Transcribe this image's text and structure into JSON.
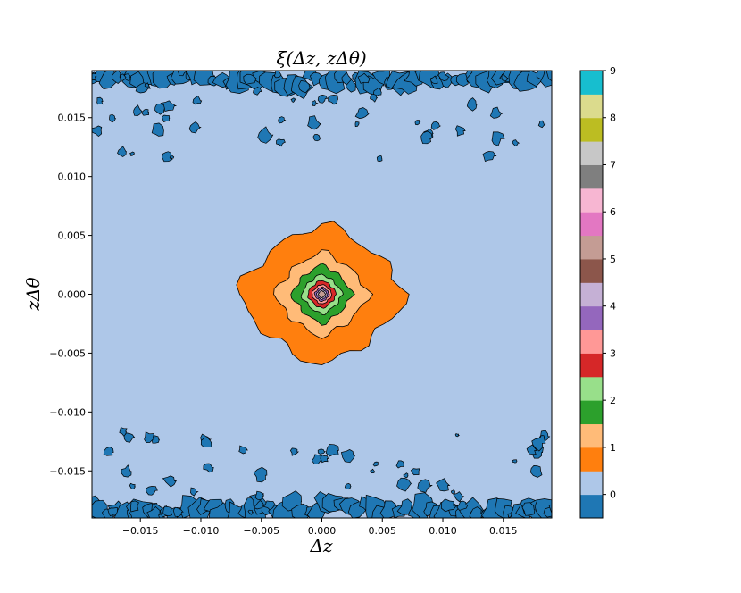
{
  "chart_data": {
    "type": "contour",
    "title": "ξ(Δz, zΔθ)",
    "xlabel": "Δz",
    "ylabel": "zΔθ",
    "xlim": [
      -0.019,
      0.019
    ],
    "ylim": [
      -0.019,
      0.019
    ],
    "x_ticks": [
      {
        "value": -0.015,
        "label": "−0.015"
      },
      {
        "value": -0.01,
        "label": "−0.010"
      },
      {
        "value": -0.005,
        "label": "−0.005"
      },
      {
        "value": 0.0,
        "label": "0.000"
      },
      {
        "value": 0.005,
        "label": "0.005"
      },
      {
        "value": 0.01,
        "label": "0.010"
      },
      {
        "value": 0.015,
        "label": "0.015"
      }
    ],
    "y_ticks": [
      {
        "value": 0.015,
        "label": "0.015"
      },
      {
        "value": 0.01,
        "label": "0.010"
      },
      {
        "value": 0.005,
        "label": "0.005"
      },
      {
        "value": 0.0,
        "label": "0.000"
      },
      {
        "value": -0.005,
        "label": "−0.005"
      },
      {
        "value": -0.01,
        "label": "−0.010"
      },
      {
        "value": -0.015,
        "label": "−0.015"
      }
    ],
    "colorbar": {
      "vmin": -0.5,
      "vmax": 9.0,
      "level_step": 0.5,
      "colormap": "tab20",
      "colors": [
        "#1f77b4",
        "#aec7e8",
        "#ff7f0e",
        "#ffbb78",
        "#2ca02c",
        "#98df8a",
        "#d62728",
        "#ff9896",
        "#9467bd",
        "#c5b0d5",
        "#8c564b",
        "#c49c94",
        "#e377c2",
        "#f7b6d2",
        "#7f7f7f",
        "#c7c7c7",
        "#bcbd22",
        "#dbdb8d",
        "#17becf"
      ],
      "tick_labels": [
        {
          "value": 0,
          "label": "0"
        },
        {
          "value": 1,
          "label": "1"
        },
        {
          "value": 2,
          "label": "2"
        },
        {
          "value": 3,
          "label": "3"
        },
        {
          "value": 4,
          "label": "4"
        },
        {
          "value": 5,
          "label": "5"
        },
        {
          "value": 6,
          "label": "6"
        },
        {
          "value": 7,
          "label": "7"
        },
        {
          "value": 8,
          "label": "8"
        },
        {
          "value": 9,
          "label": "9"
        }
      ]
    },
    "features": {
      "background_value": 0,
      "central_peak_center": [
        0.0,
        0.0
      ],
      "peak_contours": [
        {
          "level": 0.5,
          "half_width_x": 0.007,
          "half_height_y": 0.006
        },
        {
          "level": 1.0,
          "half_width_x": 0.0039,
          "half_height_y": 0.0036
        },
        {
          "level": 1.5,
          "half_width_x": 0.0025,
          "half_height_y": 0.0025
        },
        {
          "level": 2.0,
          "half_width_x": 0.0017,
          "half_height_y": 0.0017
        },
        {
          "level": 2.5,
          "half_width_x": 0.0012,
          "half_height_y": 0.0012
        },
        {
          "level": 3.0,
          "half_width_x": 0.00085,
          "half_height_y": 0.00085
        },
        {
          "level": 3.5,
          "half_width_x": 0.00062,
          "half_height_y": 0.00062
        },
        {
          "level": 4.0,
          "half_width_x": 0.00045,
          "half_height_y": 0.00045
        },
        {
          "level": 5.0,
          "half_width_x": 0.0003,
          "half_height_y": 0.0003
        }
      ],
      "noise_bands_abs_y_min": 0.0115,
      "negative_region_value": -0.5
    }
  }
}
